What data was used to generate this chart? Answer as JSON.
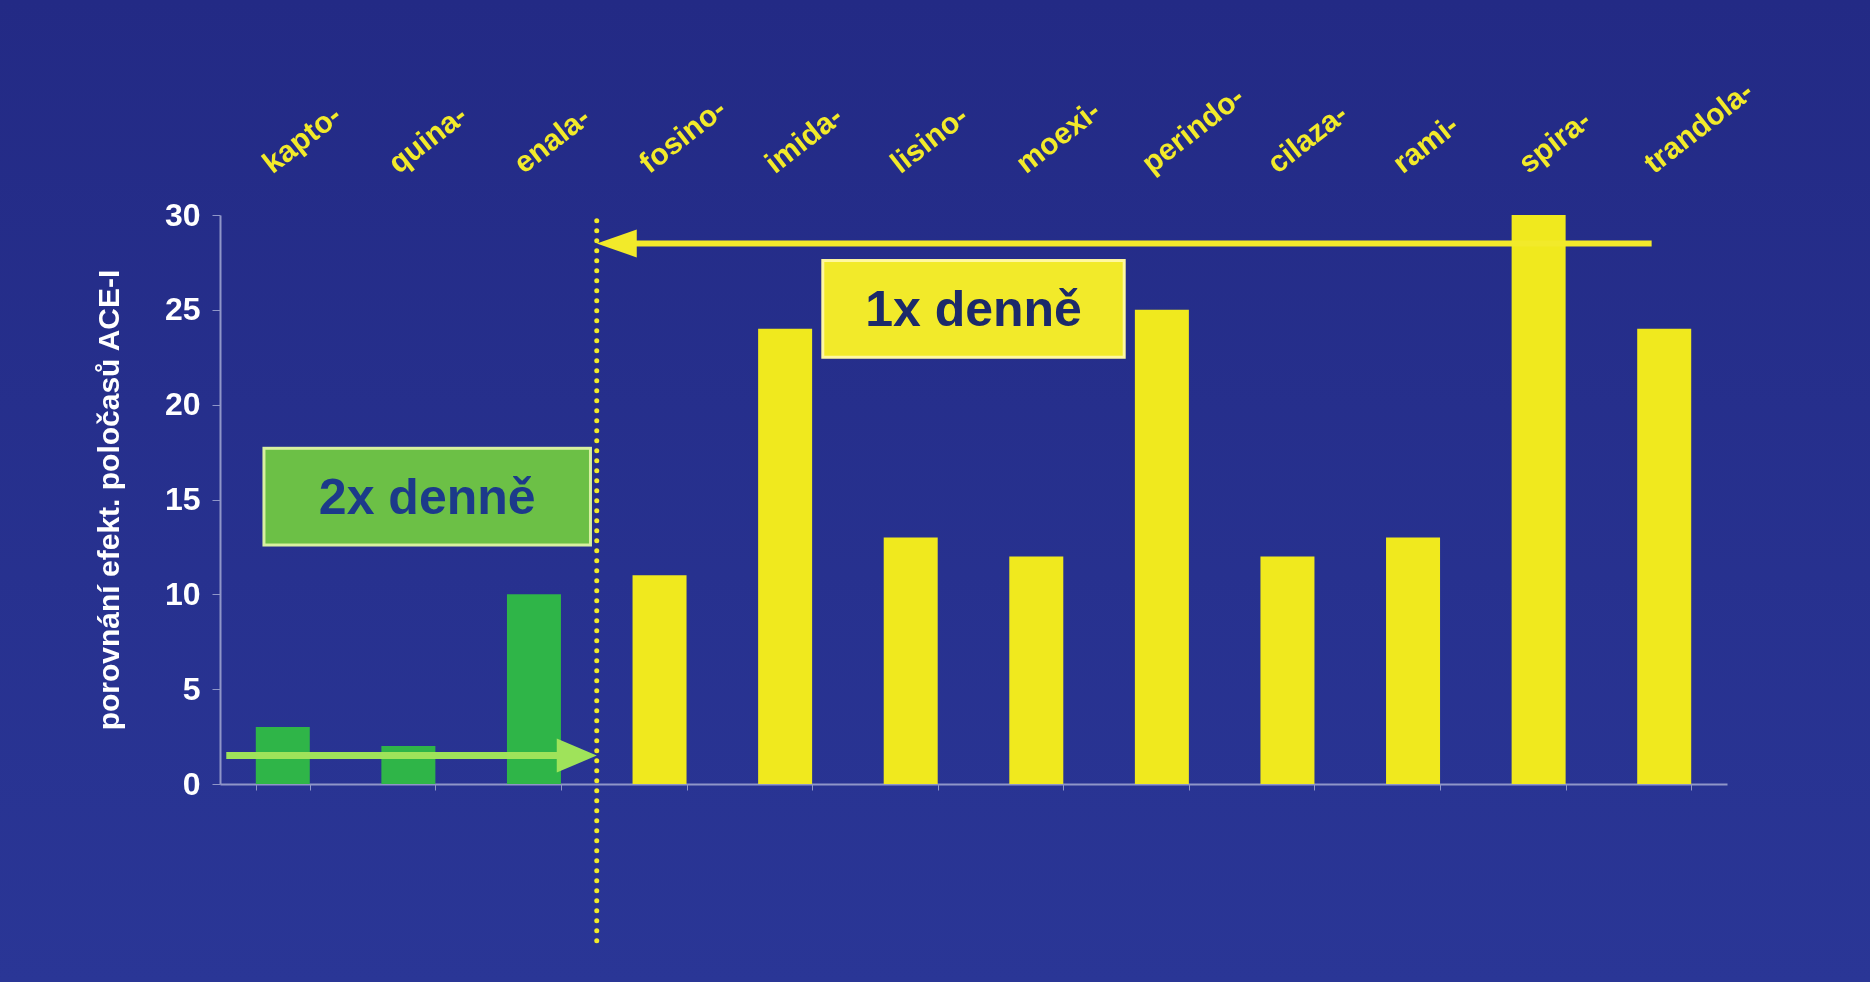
{
  "chart_data": {
    "type": "bar",
    "ylabel": "porovnání efekt. poločasů ACE-I",
    "categories": [
      "kapto-",
      "quina-",
      "enala-",
      "fosino-",
      "imida-",
      "lisino-",
      "moexi-",
      "perindo-",
      "cilaza-",
      "rami-",
      "spira-",
      "trandola-"
    ],
    "values": [
      3,
      2,
      10,
      11,
      24,
      13,
      12,
      25,
      12,
      13,
      30,
      24
    ],
    "colors": [
      "#2fb548",
      "#2fb548",
      "#2fb548",
      "#f0e91e",
      "#f0e91e",
      "#f0e91e",
      "#f0e91e",
      "#f0e91e",
      "#f0e91e",
      "#f0e91e",
      "#f0e91e",
      "#f0e91e"
    ],
    "ylim": [
      0,
      30
    ],
    "yticks": [
      0,
      5,
      10,
      15,
      20,
      25,
      30
    ],
    "annotations": [
      "2x denně",
      "1x denně"
    ]
  }
}
